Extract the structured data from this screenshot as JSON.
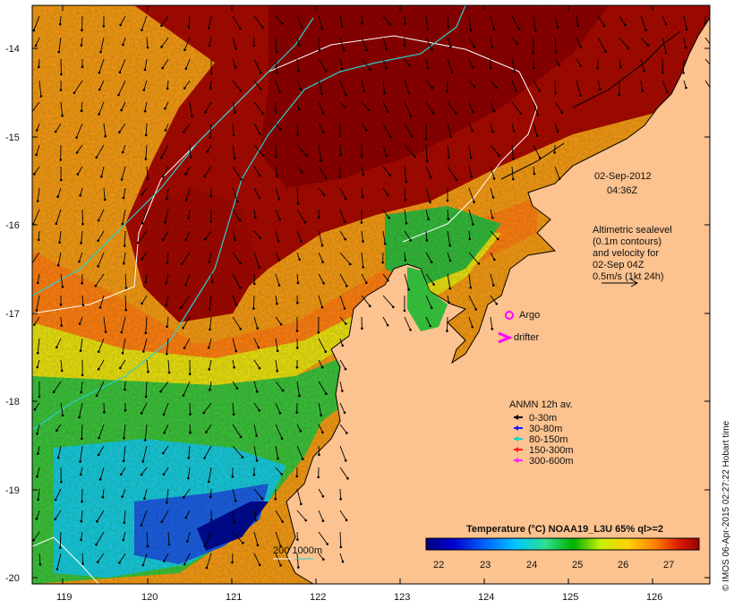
{
  "map": {
    "date": "02-Sep-2012",
    "time": "04:36Z",
    "altimetry_note": [
      "Altimetric sealevel",
      "(0.1m contours)",
      "and velocity for",
      "02-Sep 04Z",
      "0.5m/s (1kt 24h)"
    ],
    "x_ticks": [
      "119",
      "120",
      "121",
      "122",
      "123",
      "124",
      "125",
      "126"
    ],
    "y_ticks": [
      "-14",
      "-15",
      "-16",
      "-17",
      "-18",
      "-19",
      "-20"
    ],
    "markers": {
      "argo_label": "Argo",
      "drifter_label": "drifter"
    },
    "legend": {
      "title": "ANMN 12h av.",
      "items": [
        {
          "label": "0-30m",
          "color": "#000000"
        },
        {
          "label": "30-80m",
          "color": "#1a1aff"
        },
        {
          "label": "80-150m",
          "color": "#00d8d8"
        },
        {
          "label": "150-300m",
          "color": "#ff2020"
        },
        {
          "label": "300-600m",
          "color": "#ff20ff"
        }
      ]
    },
    "colorbar": {
      "title": "Temperature (°C) NOAA19_L3U 65% ql>=2",
      "ticks": [
        "22",
        "23",
        "24",
        "25",
        "26",
        "27"
      ],
      "colors": [
        "#00007a",
        "#0000d0",
        "#0066ff",
        "#00c8ff",
        "#2ee08a",
        "#00b000",
        "#c8f000",
        "#ffd000",
        "#ff8000",
        "#e02000",
        "#9a0000"
      ]
    },
    "bathymetry_label": "200 1000m",
    "credit": "© IMOS 06-Apr-2015 02:27:22 Hobart time"
  }
}
